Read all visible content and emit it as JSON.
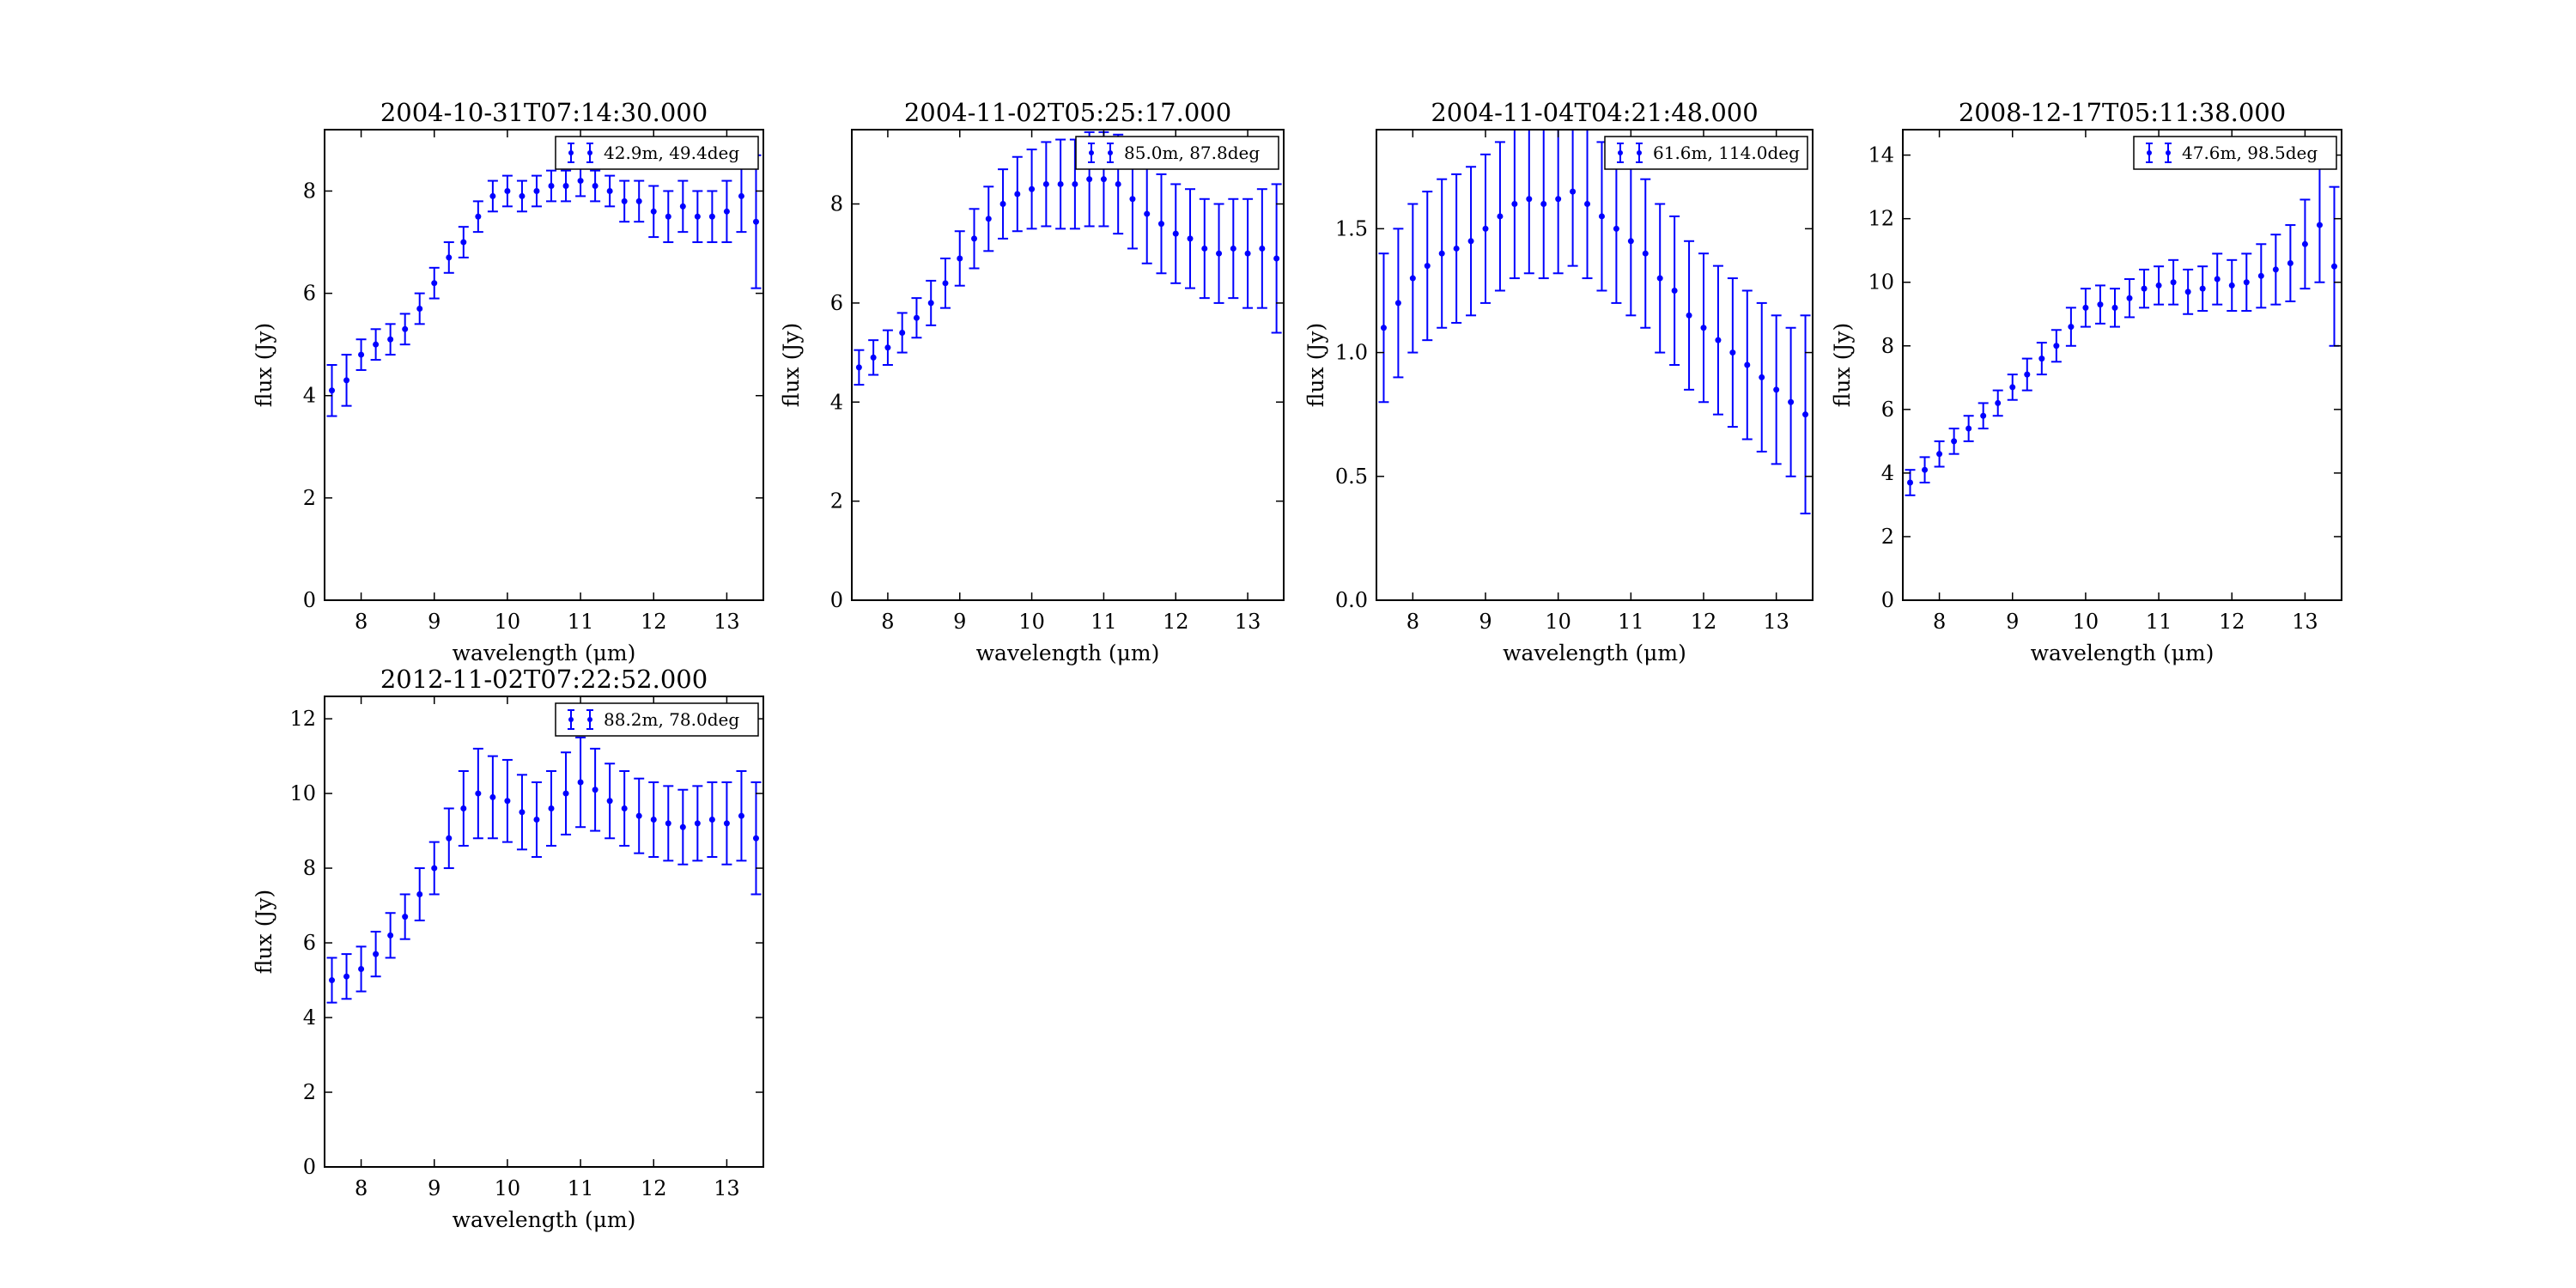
{
  "chart_data": [
    {
      "type": "scatter",
      "title": "2004-10-31T07:14:30.000",
      "xlabel": "wavelength (μm)",
      "ylabel": "flux (Jy)",
      "xlim": [
        7.5,
        13.5
      ],
      "ylim": [
        0,
        9.2
      ],
      "xticks": [
        8,
        9,
        10,
        11,
        12,
        13
      ],
      "yticks": [
        0,
        2,
        4,
        6,
        8
      ],
      "yticklabels": [
        "0",
        "2",
        "4",
        "6",
        "8"
      ],
      "grid": false,
      "legend_position": "upper right",
      "error_bars": true,
      "color": "#0000ff",
      "series": [
        {
          "name": "42.9m, 49.4deg",
          "x": [
            7.6,
            7.8,
            8.0,
            8.2,
            8.4,
            8.6,
            8.8,
            9.0,
            9.2,
            9.4,
            9.6,
            9.8,
            10.0,
            10.2,
            10.4,
            10.6,
            10.8,
            11.0,
            11.2,
            11.4,
            11.6,
            11.8,
            12.0,
            12.2,
            12.4,
            12.6,
            12.8,
            13.0,
            13.2,
            13.4
          ],
          "y": [
            4.1,
            4.3,
            4.8,
            5.0,
            5.1,
            5.3,
            5.7,
            6.2,
            6.7,
            7.0,
            7.5,
            7.9,
            8.0,
            7.9,
            8.0,
            8.1,
            8.1,
            8.2,
            8.1,
            8.0,
            7.8,
            7.8,
            7.6,
            7.5,
            7.7,
            7.5,
            7.5,
            7.6,
            7.9,
            7.4
          ],
          "yerr": [
            0.5,
            0.5,
            0.3,
            0.3,
            0.3,
            0.3,
            0.3,
            0.3,
            0.3,
            0.3,
            0.3,
            0.3,
            0.3,
            0.3,
            0.3,
            0.3,
            0.3,
            0.3,
            0.3,
            0.3,
            0.4,
            0.4,
            0.5,
            0.5,
            0.5,
            0.5,
            0.5,
            0.6,
            0.7,
            1.3
          ]
        }
      ]
    },
    {
      "type": "scatter",
      "title": "2004-11-02T05:25:17.000",
      "xlabel": "wavelength (μm)",
      "ylabel": "flux (Jy)",
      "xlim": [
        7.5,
        13.5
      ],
      "ylim": [
        0,
        9.5
      ],
      "xticks": [
        8,
        9,
        10,
        11,
        12,
        13
      ],
      "yticks": [
        0,
        2,
        4,
        6,
        8
      ],
      "yticklabels": [
        "0",
        "2",
        "4",
        "6",
        "8"
      ],
      "grid": false,
      "legend_position": "upper right",
      "error_bars": true,
      "color": "#0000ff",
      "series": [
        {
          "name": "85.0m, 87.8deg",
          "x": [
            7.6,
            7.8,
            8.0,
            8.2,
            8.4,
            8.6,
            8.8,
            9.0,
            9.2,
            9.4,
            9.6,
            9.8,
            10.0,
            10.2,
            10.4,
            10.6,
            10.8,
            11.0,
            11.2,
            11.4,
            11.6,
            11.8,
            12.0,
            12.2,
            12.4,
            12.6,
            12.8,
            13.0,
            13.2,
            13.4
          ],
          "y": [
            4.7,
            4.9,
            5.1,
            5.4,
            5.7,
            6.0,
            6.4,
            6.9,
            7.3,
            7.7,
            8.0,
            8.2,
            8.3,
            8.4,
            8.4,
            8.4,
            8.5,
            8.5,
            8.4,
            8.1,
            7.8,
            7.6,
            7.4,
            7.3,
            7.1,
            7.0,
            7.1,
            7.0,
            7.1,
            6.9
          ],
          "yerr": [
            0.35,
            0.35,
            0.35,
            0.4,
            0.4,
            0.45,
            0.5,
            0.55,
            0.6,
            0.65,
            0.7,
            0.75,
            0.8,
            0.85,
            0.9,
            0.9,
            0.95,
            0.95,
            1.0,
            1.0,
            1.0,
            1.0,
            1.0,
            1.0,
            1.0,
            1.0,
            1.0,
            1.1,
            1.2,
            1.5
          ]
        }
      ]
    },
    {
      "type": "scatter",
      "title": "2004-11-04T04:21:48.000",
      "xlabel": "wavelength (μm)",
      "ylabel": "flux (Jy)",
      "xlim": [
        7.5,
        13.5
      ],
      "ylim": [
        0,
        1.9
      ],
      "xticks": [
        8,
        9,
        10,
        11,
        12,
        13
      ],
      "yticks": [
        0,
        0.5,
        1.0,
        1.5
      ],
      "yticklabels": [
        "0.0",
        "0.5",
        "1.0",
        "1.5"
      ],
      "grid": false,
      "legend_position": "upper right",
      "error_bars": true,
      "color": "#0000ff",
      "series": [
        {
          "name": "61.6m, 114.0deg",
          "x": [
            7.6,
            7.8,
            8.0,
            8.2,
            8.4,
            8.6,
            8.8,
            9.0,
            9.2,
            9.4,
            9.6,
            9.8,
            10.0,
            10.2,
            10.4,
            10.6,
            10.8,
            11.0,
            11.2,
            11.4,
            11.6,
            11.8,
            12.0,
            12.2,
            12.4,
            12.6,
            12.8,
            13.0,
            13.2,
            13.4
          ],
          "y": [
            1.1,
            1.2,
            1.3,
            1.35,
            1.4,
            1.42,
            1.45,
            1.5,
            1.55,
            1.6,
            1.62,
            1.6,
            1.62,
            1.65,
            1.6,
            1.55,
            1.5,
            1.45,
            1.4,
            1.3,
            1.25,
            1.15,
            1.1,
            1.05,
            1.0,
            0.95,
            0.9,
            0.85,
            0.8,
            0.75
          ],
          "yerr": [
            0.3,
            0.3,
            0.3,
            0.3,
            0.3,
            0.3,
            0.3,
            0.3,
            0.3,
            0.3,
            0.3,
            0.3,
            0.3,
            0.3,
            0.3,
            0.3,
            0.3,
            0.3,
            0.3,
            0.3,
            0.3,
            0.3,
            0.3,
            0.3,
            0.3,
            0.3,
            0.3,
            0.3,
            0.3,
            0.4
          ]
        }
      ]
    },
    {
      "type": "scatter",
      "title": "2008-12-17T05:11:38.000",
      "xlabel": "wavelength (μm)",
      "ylabel": "flux (Jy)",
      "xlim": [
        7.5,
        13.5
      ],
      "ylim": [
        0,
        14.8
      ],
      "xticks": [
        8,
        9,
        10,
        11,
        12,
        13
      ],
      "yticks": [
        0,
        2,
        4,
        6,
        8,
        10,
        12,
        14
      ],
      "yticklabels": [
        "0",
        "2",
        "4",
        "6",
        "8",
        "10",
        "12",
        "14"
      ],
      "grid": false,
      "legend_position": "upper right",
      "error_bars": true,
      "color": "#0000ff",
      "series": [
        {
          "name": "47.6m, 98.5deg",
          "x": [
            7.6,
            7.8,
            8.0,
            8.2,
            8.4,
            8.6,
            8.8,
            9.0,
            9.2,
            9.4,
            9.6,
            9.8,
            10.0,
            10.2,
            10.4,
            10.6,
            10.8,
            11.0,
            11.2,
            11.4,
            11.6,
            11.8,
            12.0,
            12.2,
            12.4,
            12.6,
            12.8,
            13.0,
            13.2,
            13.4
          ],
          "y": [
            3.7,
            4.1,
            4.6,
            5.0,
            5.4,
            5.8,
            6.2,
            6.7,
            7.1,
            7.6,
            8.0,
            8.6,
            9.2,
            9.3,
            9.2,
            9.5,
            9.8,
            9.9,
            10.0,
            9.7,
            9.8,
            10.1,
            9.9,
            10.0,
            10.2,
            10.4,
            10.6,
            11.2,
            11.8,
            10.5
          ],
          "yerr": [
            0.4,
            0.4,
            0.4,
            0.4,
            0.4,
            0.4,
            0.4,
            0.4,
            0.5,
            0.5,
            0.5,
            0.6,
            0.6,
            0.6,
            0.6,
            0.6,
            0.6,
            0.6,
            0.7,
            0.7,
            0.7,
            0.8,
            0.8,
            0.9,
            1.0,
            1.1,
            1.2,
            1.4,
            1.8,
            2.5
          ]
        }
      ]
    },
    {
      "type": "scatter",
      "title": "2012-11-02T07:22:52.000",
      "xlabel": "wavelength (μm)",
      "ylabel": "flux (Jy)",
      "xlim": [
        7.5,
        13.5
      ],
      "ylim": [
        0,
        12.6
      ],
      "xticks": [
        8,
        9,
        10,
        11,
        12,
        13
      ],
      "yticks": [
        0,
        2,
        4,
        6,
        8,
        10,
        12
      ],
      "yticklabels": [
        "0",
        "2",
        "4",
        "6",
        "8",
        "10",
        "12"
      ],
      "grid": false,
      "legend_position": "upper right",
      "error_bars": true,
      "color": "#0000ff",
      "series": [
        {
          "name": "88.2m, 78.0deg",
          "x": [
            7.6,
            7.8,
            8.0,
            8.2,
            8.4,
            8.6,
            8.8,
            9.0,
            9.2,
            9.4,
            9.6,
            9.8,
            10.0,
            10.2,
            10.4,
            10.6,
            10.8,
            11.0,
            11.2,
            11.4,
            11.6,
            11.8,
            12.0,
            12.2,
            12.4,
            12.6,
            12.8,
            13.0,
            13.2,
            13.4
          ],
          "y": [
            5.0,
            5.1,
            5.3,
            5.7,
            6.2,
            6.7,
            7.3,
            8.0,
            8.8,
            9.6,
            10.0,
            9.9,
            9.8,
            9.5,
            9.3,
            9.6,
            10.0,
            10.3,
            10.1,
            9.8,
            9.6,
            9.4,
            9.3,
            9.2,
            9.1,
            9.2,
            9.3,
            9.2,
            9.4,
            8.8
          ],
          "yerr": [
            0.6,
            0.6,
            0.6,
            0.6,
            0.6,
            0.6,
            0.7,
            0.7,
            0.8,
            1.0,
            1.2,
            1.1,
            1.1,
            1.0,
            1.0,
            1.0,
            1.1,
            1.2,
            1.1,
            1.0,
            1.0,
            1.0,
            1.0,
            1.0,
            1.0,
            1.0,
            1.0,
            1.1,
            1.2,
            1.5
          ]
        }
      ]
    }
  ]
}
